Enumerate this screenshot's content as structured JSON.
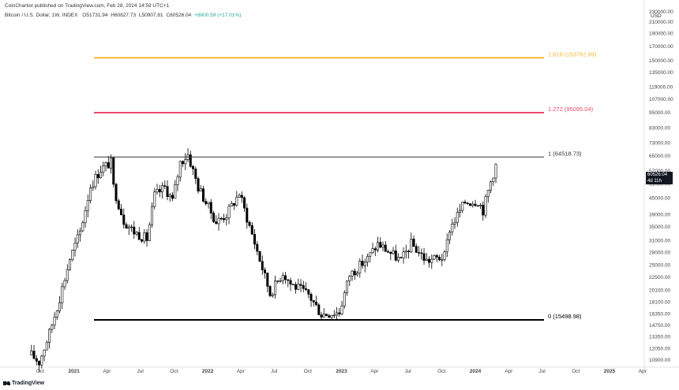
{
  "header": {
    "publish_line": "CoinChartist published on TradingView.com, Feb 28, 2024 14:59 UTC+1",
    "symbol": "Bitcoin / U.S. Dollar, 1W, INDEX",
    "open": "O51731.94",
    "high": "H60827.73",
    "low": "L50907.81",
    "close": "C60526.04",
    "change": "+8800.59 (+17.01%)",
    "currency": "USD"
  },
  "price_tag": {
    "price": "60526.04",
    "countdown": "4d 11h"
  },
  "logo": {
    "text": "TradingView"
  },
  "colors": {
    "fib_1618": "#f7b731",
    "fib_1272": "#e84a6b",
    "fib_1": "#333333",
    "fib_0": "#000000",
    "candle_up": "#ffffff",
    "candle_down": "#000000"
  },
  "chart_data": {
    "type": "candlestick",
    "title": "",
    "xlabel": "",
    "ylabel": "",
    "y_scale": "log",
    "ylim": [
      10250,
      255000
    ],
    "y_ticks": [
      "10900.00",
      "12050.00",
      "13350.00",
      "14750.00",
      "16350.00",
      "18100.00",
      "20100.00",
      "22500.00",
      "25000.00",
      "28000.00",
      "31000.00",
      "35000.00",
      "39000.00",
      "45000.00",
      "51000.00",
      "57000.00",
      "65000.00",
      "73000.00",
      "83000.00",
      "95000.00",
      "107000.00",
      "119000.00",
      "135000.00",
      "150000.00",
      "170000.00",
      "190000.00",
      "210000.00",
      "230000.00"
    ],
    "x_ticks": [
      "Oct",
      "2021",
      "Apr",
      "Jul",
      "Oct",
      "2022",
      "Apr",
      "Jul",
      "Oct",
      "2023",
      "Apr",
      "Jul",
      "Oct",
      "2024",
      "Apr",
      "Jul",
      "Oct",
      "2025",
      "Apr"
    ],
    "fib_levels": [
      {
        "label": "0 (15498.98)",
        "value": 15498.98,
        "color_key": "fib_0"
      },
      {
        "label": "1 (64518.73)",
        "value": 64518.73,
        "color_key": "fib_1"
      },
      {
        "label": "1.272 (95095.04)",
        "value": 95095.04,
        "color_key": "fib_1272"
      },
      {
        "label": "1.618 (153762.99)",
        "value": 153762.99,
        "color_key": "fib_1618"
      }
    ],
    "anchor": [
      {
        "date": "2020-08-31",
        "close": 11650
      },
      {
        "date": "2020-09-28",
        "close": 10700
      },
      {
        "date": "2020-10-26",
        "close": 13800
      },
      {
        "date": "2020-11-23",
        "close": 18800
      },
      {
        "date": "2020-12-21",
        "close": 26500
      },
      {
        "date": "2021-01-18",
        "close": 33500
      },
      {
        "date": "2021-02-15",
        "close": 50000
      },
      {
        "date": "2021-03-15",
        "close": 58000
      },
      {
        "date": "2021-04-12",
        "close": 61500
      },
      {
        "date": "2021-04-19",
        "close": 49500
      },
      {
        "date": "2021-05-17",
        "close": 37000
      },
      {
        "date": "2021-06-14",
        "close": 33500
      },
      {
        "date": "2021-07-19",
        "close": 31500
      },
      {
        "date": "2021-08-09",
        "close": 46000
      },
      {
        "date": "2021-09-06",
        "close": 49500
      },
      {
        "date": "2021-09-27",
        "close": 44000
      },
      {
        "date": "2021-10-18",
        "close": 61500
      },
      {
        "date": "2021-11-08",
        "close": 66000
      },
      {
        "date": "2021-12-06",
        "close": 49500
      },
      {
        "date": "2022-01-24",
        "close": 36500
      },
      {
        "date": "2022-02-21",
        "close": 39000
      },
      {
        "date": "2022-03-28",
        "close": 47000
      },
      {
        "date": "2022-05-09",
        "close": 30500
      },
      {
        "date": "2022-06-13",
        "close": 21000
      },
      {
        "date": "2022-06-20",
        "close": 19500
      },
      {
        "date": "2022-07-25",
        "close": 23500
      },
      {
        "date": "2022-08-15",
        "close": 21300
      },
      {
        "date": "2022-10-03",
        "close": 19300
      },
      {
        "date": "2022-11-07",
        "close": 16300
      },
      {
        "date": "2022-12-26",
        "close": 16600
      },
      {
        "date": "2023-01-23",
        "close": 23000
      },
      {
        "date": "2023-03-13",
        "close": 26500
      },
      {
        "date": "2023-04-10",
        "close": 30200
      },
      {
        "date": "2023-06-12",
        "close": 26000
      },
      {
        "date": "2023-07-10",
        "close": 30200
      },
      {
        "date": "2023-08-21",
        "close": 26000
      },
      {
        "date": "2023-10-09",
        "close": 27000
      },
      {
        "date": "2023-10-23",
        "close": 34500
      },
      {
        "date": "2023-12-04",
        "close": 43500
      },
      {
        "date": "2024-01-08",
        "close": 44000
      },
      {
        "date": "2024-01-22",
        "close": 40500
      },
      {
        "date": "2024-02-12",
        "close": 52000
      },
      {
        "date": "2024-02-26",
        "close": 60526
      }
    ]
  }
}
